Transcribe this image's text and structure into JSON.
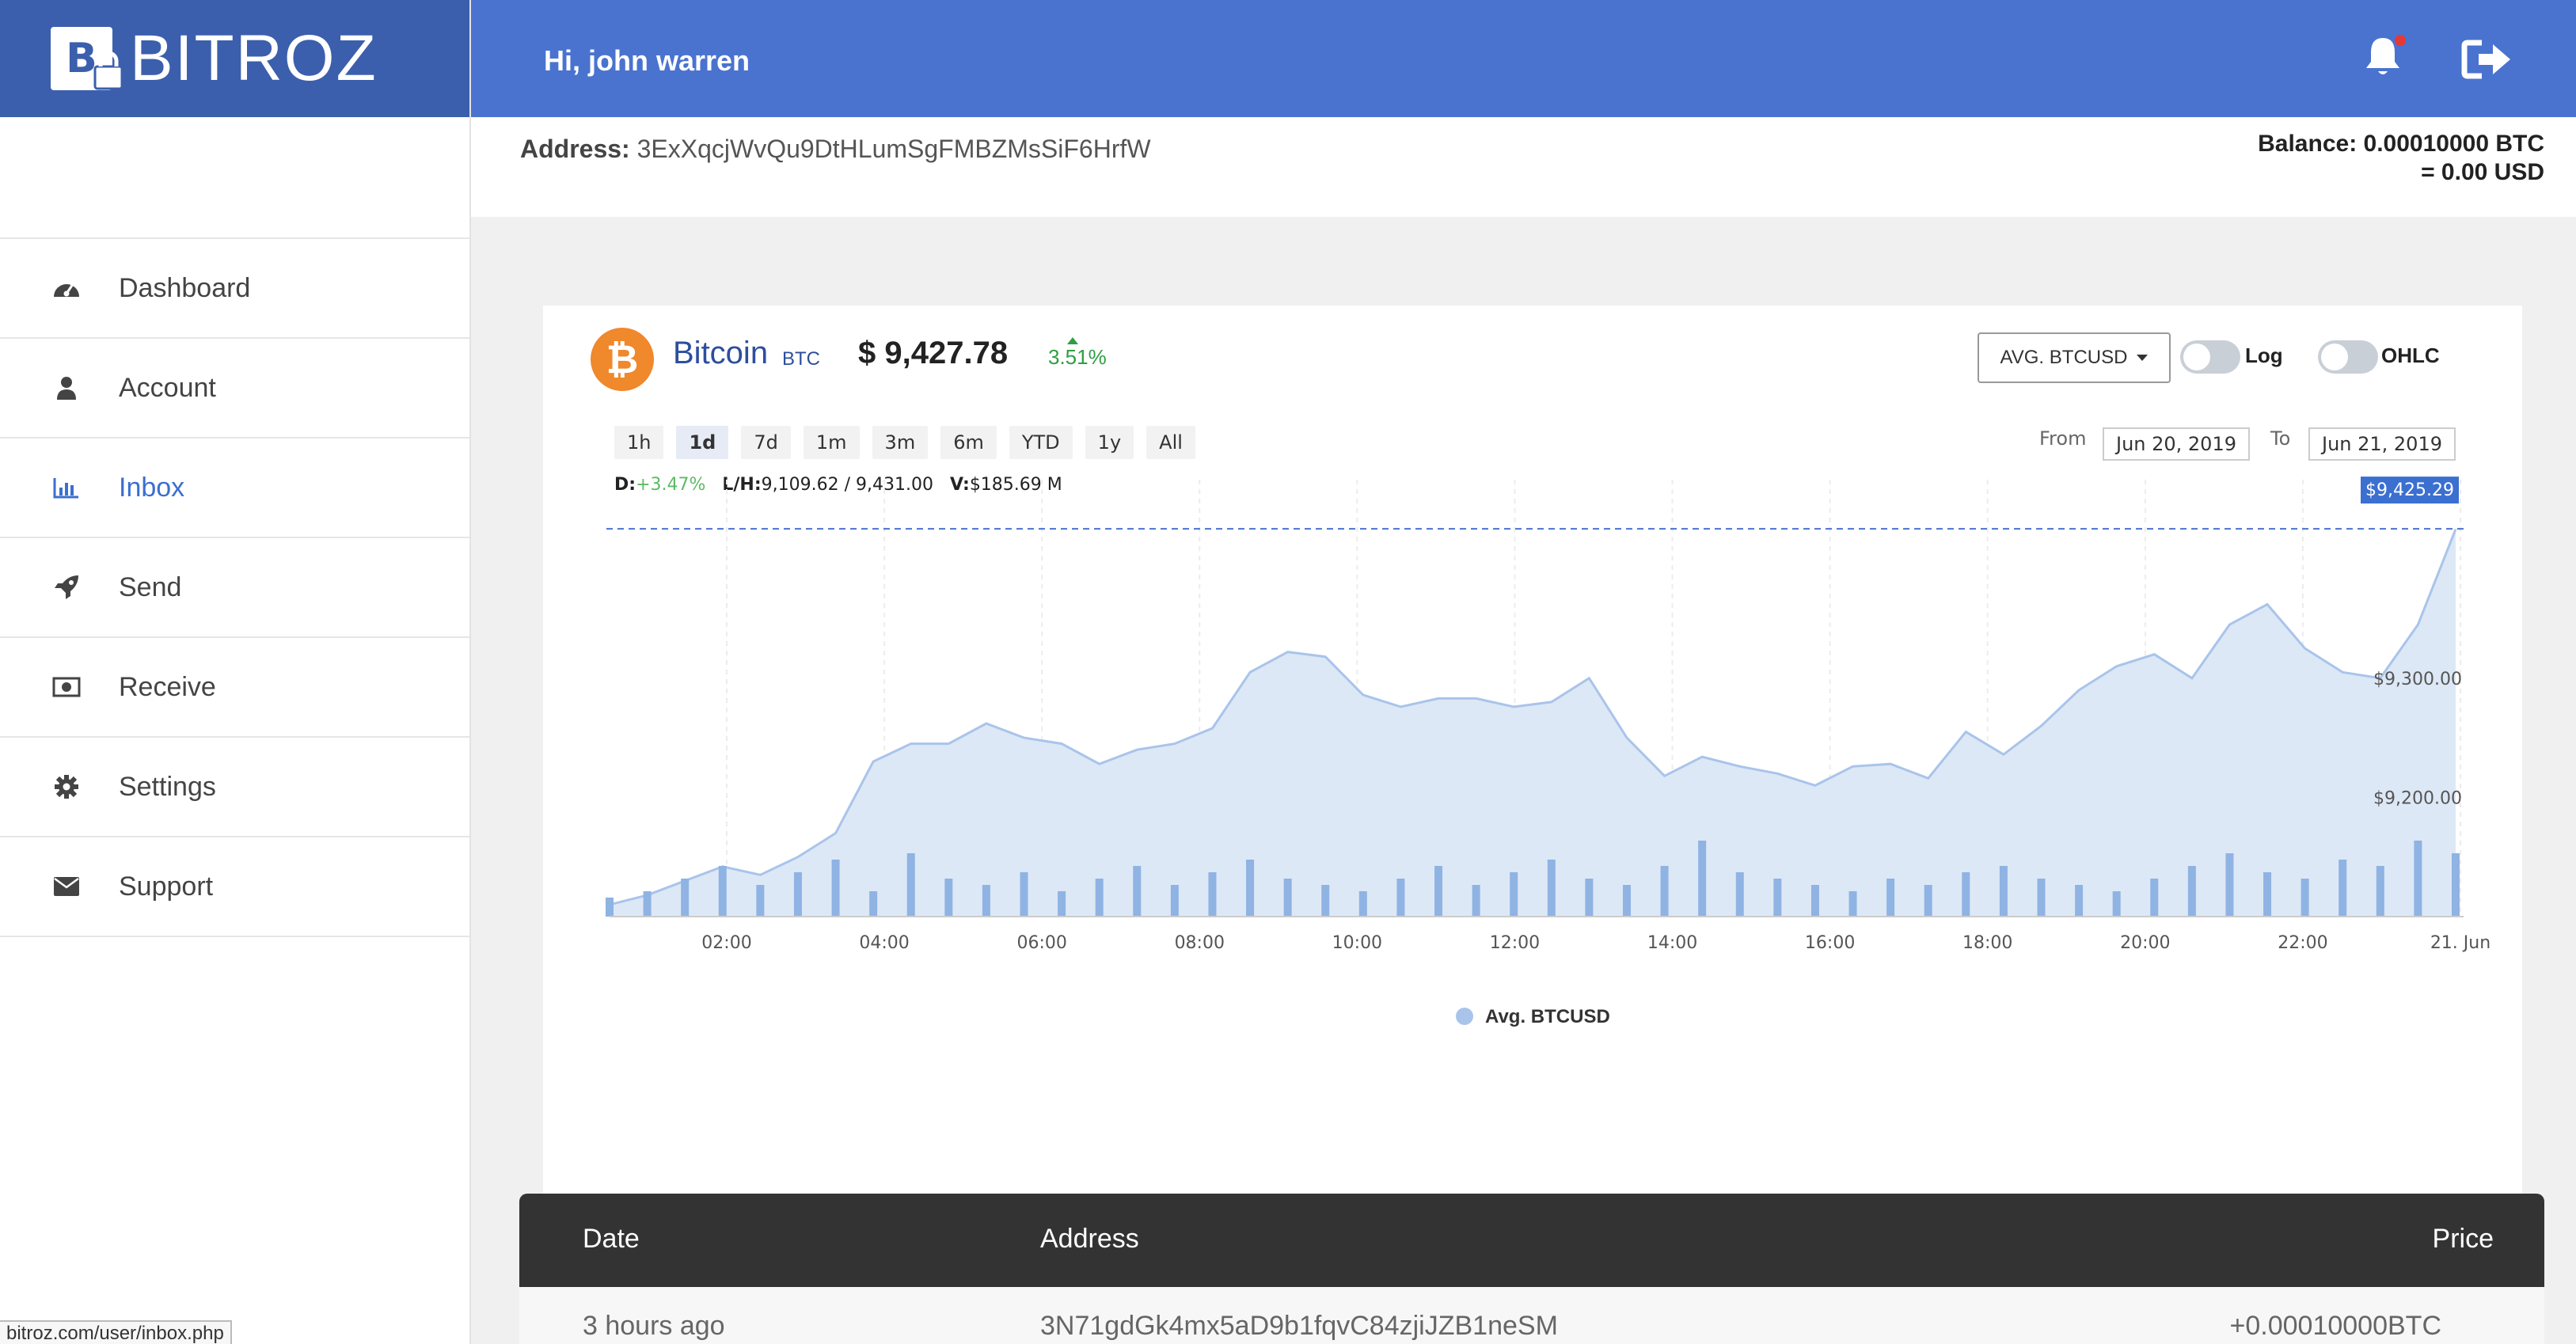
{
  "app": {
    "name": "BITROZ",
    "status_url": "bitroz.com/user/inbox.php"
  },
  "header": {
    "greeting": "Hi, john warren",
    "bell_icon": "bell-icon",
    "logout_icon": "logout-icon"
  },
  "sidebar": {
    "items": [
      {
        "label": "Dashboard",
        "icon": "tachometer-icon"
      },
      {
        "label": "Account",
        "icon": "user-icon"
      },
      {
        "label": "Inbox",
        "icon": "bar-chart-icon",
        "active": true
      },
      {
        "label": "Send",
        "icon": "rocket-icon"
      },
      {
        "label": "Receive",
        "icon": "money-icon"
      },
      {
        "label": "Settings",
        "icon": "gear-icon"
      },
      {
        "label": "Support",
        "icon": "envelope-icon"
      }
    ]
  },
  "wallet": {
    "address_label": "Address:",
    "address": "3ExXqcjWvQu9DtHLumSgFMBZMsSiF6HrfW",
    "balance_line1": "Balance: 0.00010000 BTC",
    "balance_line2": "= 0.00 USD"
  },
  "coin": {
    "name": "Bitcoin",
    "symbol": "BTC",
    "price": "$ 9,427.78",
    "change": "3.51%",
    "icon_letter": "₿"
  },
  "chart_controls": {
    "currency_select": "AVG. BTCUSD",
    "log_label": "Log",
    "ohlc_label": "OHLC",
    "ranges": [
      "1h",
      "1d",
      "7d",
      "1m",
      "3m",
      "6m",
      "YTD",
      "1y",
      "All"
    ],
    "active_range": "1d",
    "from_label": "From",
    "to_label": "To",
    "from_date": "Jun 20, 2019",
    "to_date": "Jun 21, 2019"
  },
  "stats": {
    "d_label": "D:",
    "d_value": "+3.47%",
    "lh_label": "L/H:",
    "lh_value": "9,109.62 / 9,431.00",
    "v_label": "V:",
    "v_value": "$185.69 M"
  },
  "chart_data": {
    "type": "area",
    "series": [
      {
        "name": "Avg. BTCUSD",
        "x": [
          "00:30",
          "01:00",
          "01:30",
          "02:00",
          "02:30",
          "03:00",
          "03:30",
          "03:45",
          "04:00",
          "04:30",
          "05:00",
          "05:30",
          "06:00",
          "06:30",
          "07:00",
          "07:30",
          "08:00",
          "08:30",
          "09:00",
          "09:30",
          "10:00",
          "10:30",
          "11:00",
          "11:30",
          "12:00",
          "12:30",
          "13:00",
          "13:30",
          "14:00",
          "14:30",
          "15:00",
          "15:30",
          "16:00",
          "16:30",
          "17:00",
          "17:30",
          "18:00",
          "18:30",
          "19:00",
          "19:30",
          "20:00",
          "20:30",
          "21:00",
          "21:30",
          "22:00",
          "22:30",
          "23:00",
          "23:30",
          "00:00",
          "00:30"
        ],
        "values": [
          9110,
          9118,
          9130,
          9142,
          9135,
          9150,
          9170,
          9230,
          9245,
          9245,
          9262,
          9250,
          9245,
          9228,
          9240,
          9245,
          9258,
          9305,
          9322,
          9318,
          9286,
          9276,
          9283,
          9283,
          9276,
          9280,
          9300,
          9250,
          9218,
          9234,
          9226,
          9220,
          9210,
          9226,
          9228,
          9216,
          9255,
          9236,
          9260,
          9290,
          9310,
          9320,
          9300,
          9345,
          9362,
          9325,
          9305,
          9300,
          9345,
          9425
        ]
      }
    ],
    "volume": [
      3,
      4,
      6,
      8,
      5,
      7,
      9,
      4,
      10,
      6,
      5,
      7,
      4,
      6,
      8,
      5,
      7,
      9,
      6,
      5,
      4,
      6,
      8,
      5,
      7,
      9,
      6,
      5,
      8,
      12,
      7,
      6,
      5,
      4,
      6,
      5,
      7,
      8,
      6,
      5,
      4,
      6,
      8,
      10,
      7,
      6,
      9,
      8,
      12,
      10
    ],
    "x_ticks": [
      "02:00",
      "04:00",
      "06:00",
      "08:00",
      "10:00",
      "12:00",
      "14:00",
      "16:00",
      "18:00",
      "20:00",
      "22:00",
      "21. Jun"
    ],
    "y_ticks": [
      "$9,200.00",
      "$9,300.00"
    ],
    "last_price_label": "$9,425.29",
    "legend": "Avg. BTCUSD",
    "color": "#a9c4ea",
    "fill": "#dde8f6"
  },
  "table": {
    "headers": {
      "date": "Date",
      "address": "Address",
      "price": "Price"
    },
    "rows": [
      {
        "date": "3 hours ago",
        "address": "3N71gdGk4mx5aD9b1fqvC84zjiJZB1neSM",
        "price": "+0.00010000BTC"
      }
    ]
  }
}
